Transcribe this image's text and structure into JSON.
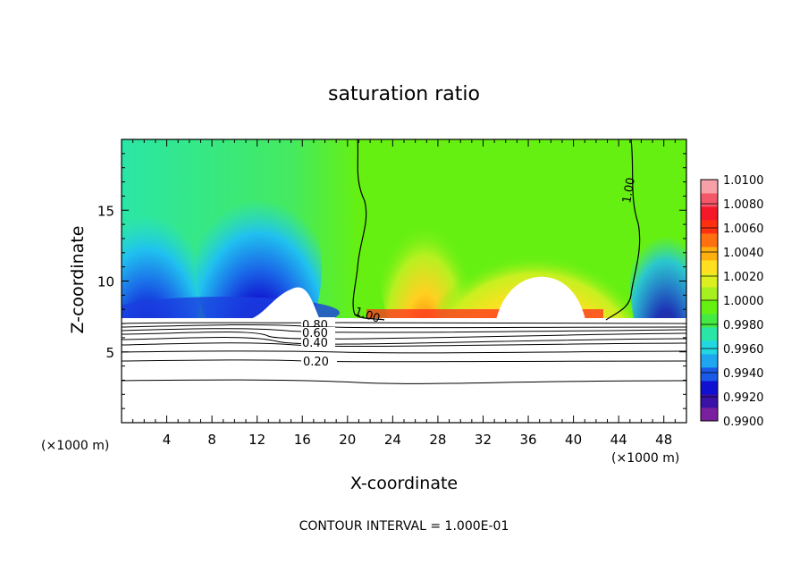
{
  "chart_data": {
    "type": "heatmap",
    "title": "saturation ratio",
    "xlabel": "X-coordinate",
    "ylabel": "Z-coordinate",
    "x_unit": "(×1000 m)",
    "footer": "CONTOUR INTERVAL = 1.000E-01",
    "xlim": [
      0,
      50
    ],
    "ylim": [
      0,
      20
    ],
    "x_ticks": [
      4,
      8,
      12,
      16,
      20,
      24,
      28,
      32,
      36,
      40,
      44,
      48
    ],
    "y_ticks": [
      5,
      10,
      15
    ],
    "colorbar": {
      "min": 0.99,
      "max": 1.01,
      "labels": [
        "1.0100",
        "1.0080",
        "1.0060",
        "1.0040",
        "1.0020",
        "1.0000",
        "0.9980",
        "0.9960",
        "0.9940",
        "0.9920",
        "0.9900"
      ],
      "colors": [
        "#7a1f9e",
        "#3a12a6",
        "#1010d0",
        "#1a5ae8",
        "#1fa6f0",
        "#22d8e0",
        "#2ae6a6",
        "#44ea44",
        "#66f012",
        "#a6f020",
        "#dcf020",
        "#ffe020",
        "#ffb010",
        "#ff7010",
        "#ff3010",
        "#f41828",
        "#f45868",
        "#f8a0a8"
      ]
    },
    "contours": [
      {
        "label": "0.20",
        "z": 4.5
      },
      {
        "label": "0.40",
        "z": 5.6
      },
      {
        "label": "0.60",
        "z": 6.2
      },
      {
        "label": "0.80",
        "z": 6.8
      },
      {
        "label": "1.00",
        "z": 7.3
      }
    ]
  }
}
